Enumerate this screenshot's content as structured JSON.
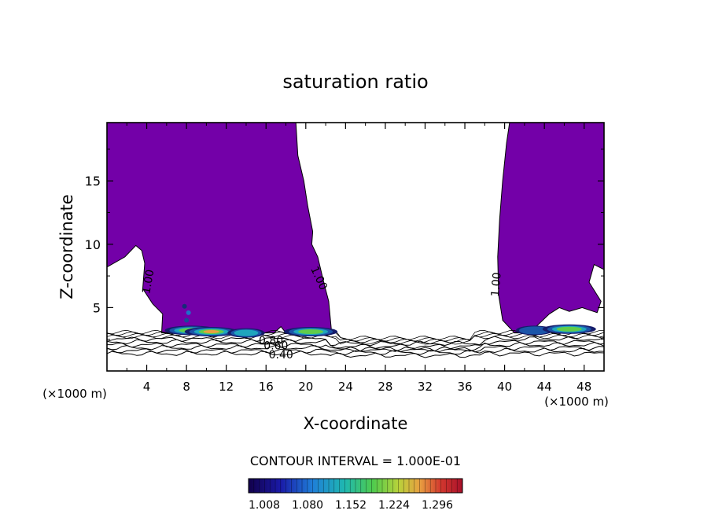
{
  "chart_data": {
    "type": "contour",
    "title": "saturation ratio",
    "xlabel": "X-coordinate",
    "ylabel": "Z-coordinate",
    "x_unit_left": "(×1000 m)",
    "x_unit_right": "(×1000 m)",
    "xlim": [
      0,
      50
    ],
    "ylim": [
      0,
      19.6
    ],
    "x_ticks": [
      4,
      8,
      12,
      16,
      20,
      24,
      28,
      32,
      36,
      40,
      44,
      48
    ],
    "y_ticks": [
      5,
      10,
      15
    ],
    "contour_interval_label": "CONTOUR INTERVAL = 1.000E-01",
    "contour_labels": [
      {
        "text": "1.00",
        "x": 4.5,
        "z": 7.0,
        "rotation": -80
      },
      {
        "text": "1.00",
        "x": 21.0,
        "z": 7.2,
        "rotation": 65
      },
      {
        "text": "1.00",
        "x": 39.5,
        "z": 6.8,
        "rotation": -85
      },
      {
        "text": "0.80",
        "x": 16.5,
        "z": 2.1,
        "rotation": 0
      },
      {
        "text": "0.60",
        "x": 17.0,
        "z": 1.7,
        "rotation": 0
      },
      {
        "text": "0.40",
        "x": 17.5,
        "z": 1.0,
        "rotation": 0
      }
    ],
    "colorbar": {
      "tick_labels": [
        "1.008",
        "1.080",
        "1.152",
        "1.224",
        "1.296"
      ],
      "range": [
        1.0,
        1.3
      ]
    },
    "supersaturated_fill_color": "#7300a8",
    "supersaturated_regions": [
      {
        "name": "left",
        "outline": [
          [
            0,
            19.6
          ],
          [
            19,
            19.6
          ],
          [
            19.2,
            17
          ],
          [
            19.8,
            15
          ],
          [
            20.2,
            13
          ],
          [
            20.7,
            11
          ],
          [
            20.6,
            10
          ],
          [
            21.2,
            9
          ],
          [
            21.8,
            7
          ],
          [
            22.3,
            5.5
          ],
          [
            22.6,
            3.0
          ],
          [
            18,
            3.0
          ],
          [
            17.5,
            3.5
          ],
          [
            16.8,
            3.0
          ],
          [
            5.5,
            3.0
          ],
          [
            5.6,
            4.5
          ],
          [
            4.6,
            5.3
          ],
          [
            3.6,
            6.5
          ],
          [
            3.8,
            8.5
          ],
          [
            3.5,
            9.5
          ],
          [
            2.9,
            9.9
          ],
          [
            1.8,
            9.0
          ],
          [
            0,
            8.2
          ]
        ]
      },
      {
        "name": "right",
        "outline": [
          [
            40.5,
            19.6
          ],
          [
            50,
            19.6
          ],
          [
            50,
            8
          ],
          [
            49.0,
            8.4
          ],
          [
            48.5,
            7.0
          ],
          [
            49.7,
            5.5
          ],
          [
            49.3,
            4.6
          ],
          [
            47.8,
            5.0
          ],
          [
            46.5,
            4.7
          ],
          [
            45.5,
            5.0
          ],
          [
            44.5,
            4.5
          ],
          [
            42.5,
            3.0
          ],
          [
            41.0,
            3.0
          ],
          [
            39.8,
            4.0
          ],
          [
            39.4,
            6.0
          ],
          [
            39.3,
            9.0
          ],
          [
            39.5,
            12.0
          ],
          [
            39.8,
            15.0
          ],
          [
            40.2,
            18.0
          ]
        ]
      }
    ],
    "hot_spots": [
      {
        "x": 8.5,
        "z": 3.2,
        "peak": 1.22
      },
      {
        "x": 10.5,
        "z": 3.1,
        "peak": 1.25
      },
      {
        "x": 14.0,
        "z": 3.0,
        "peak": 1.15
      },
      {
        "x": 20.5,
        "z": 3.1,
        "peak": 1.2
      },
      {
        "x": 43.0,
        "z": 3.2,
        "peak": 1.1
      },
      {
        "x": 46.5,
        "z": 3.3,
        "peak": 1.22
      }
    ],
    "boundary_layer_contours": [
      0.4,
      0.5,
      0.6,
      0.7,
      0.8,
      0.9
    ]
  }
}
